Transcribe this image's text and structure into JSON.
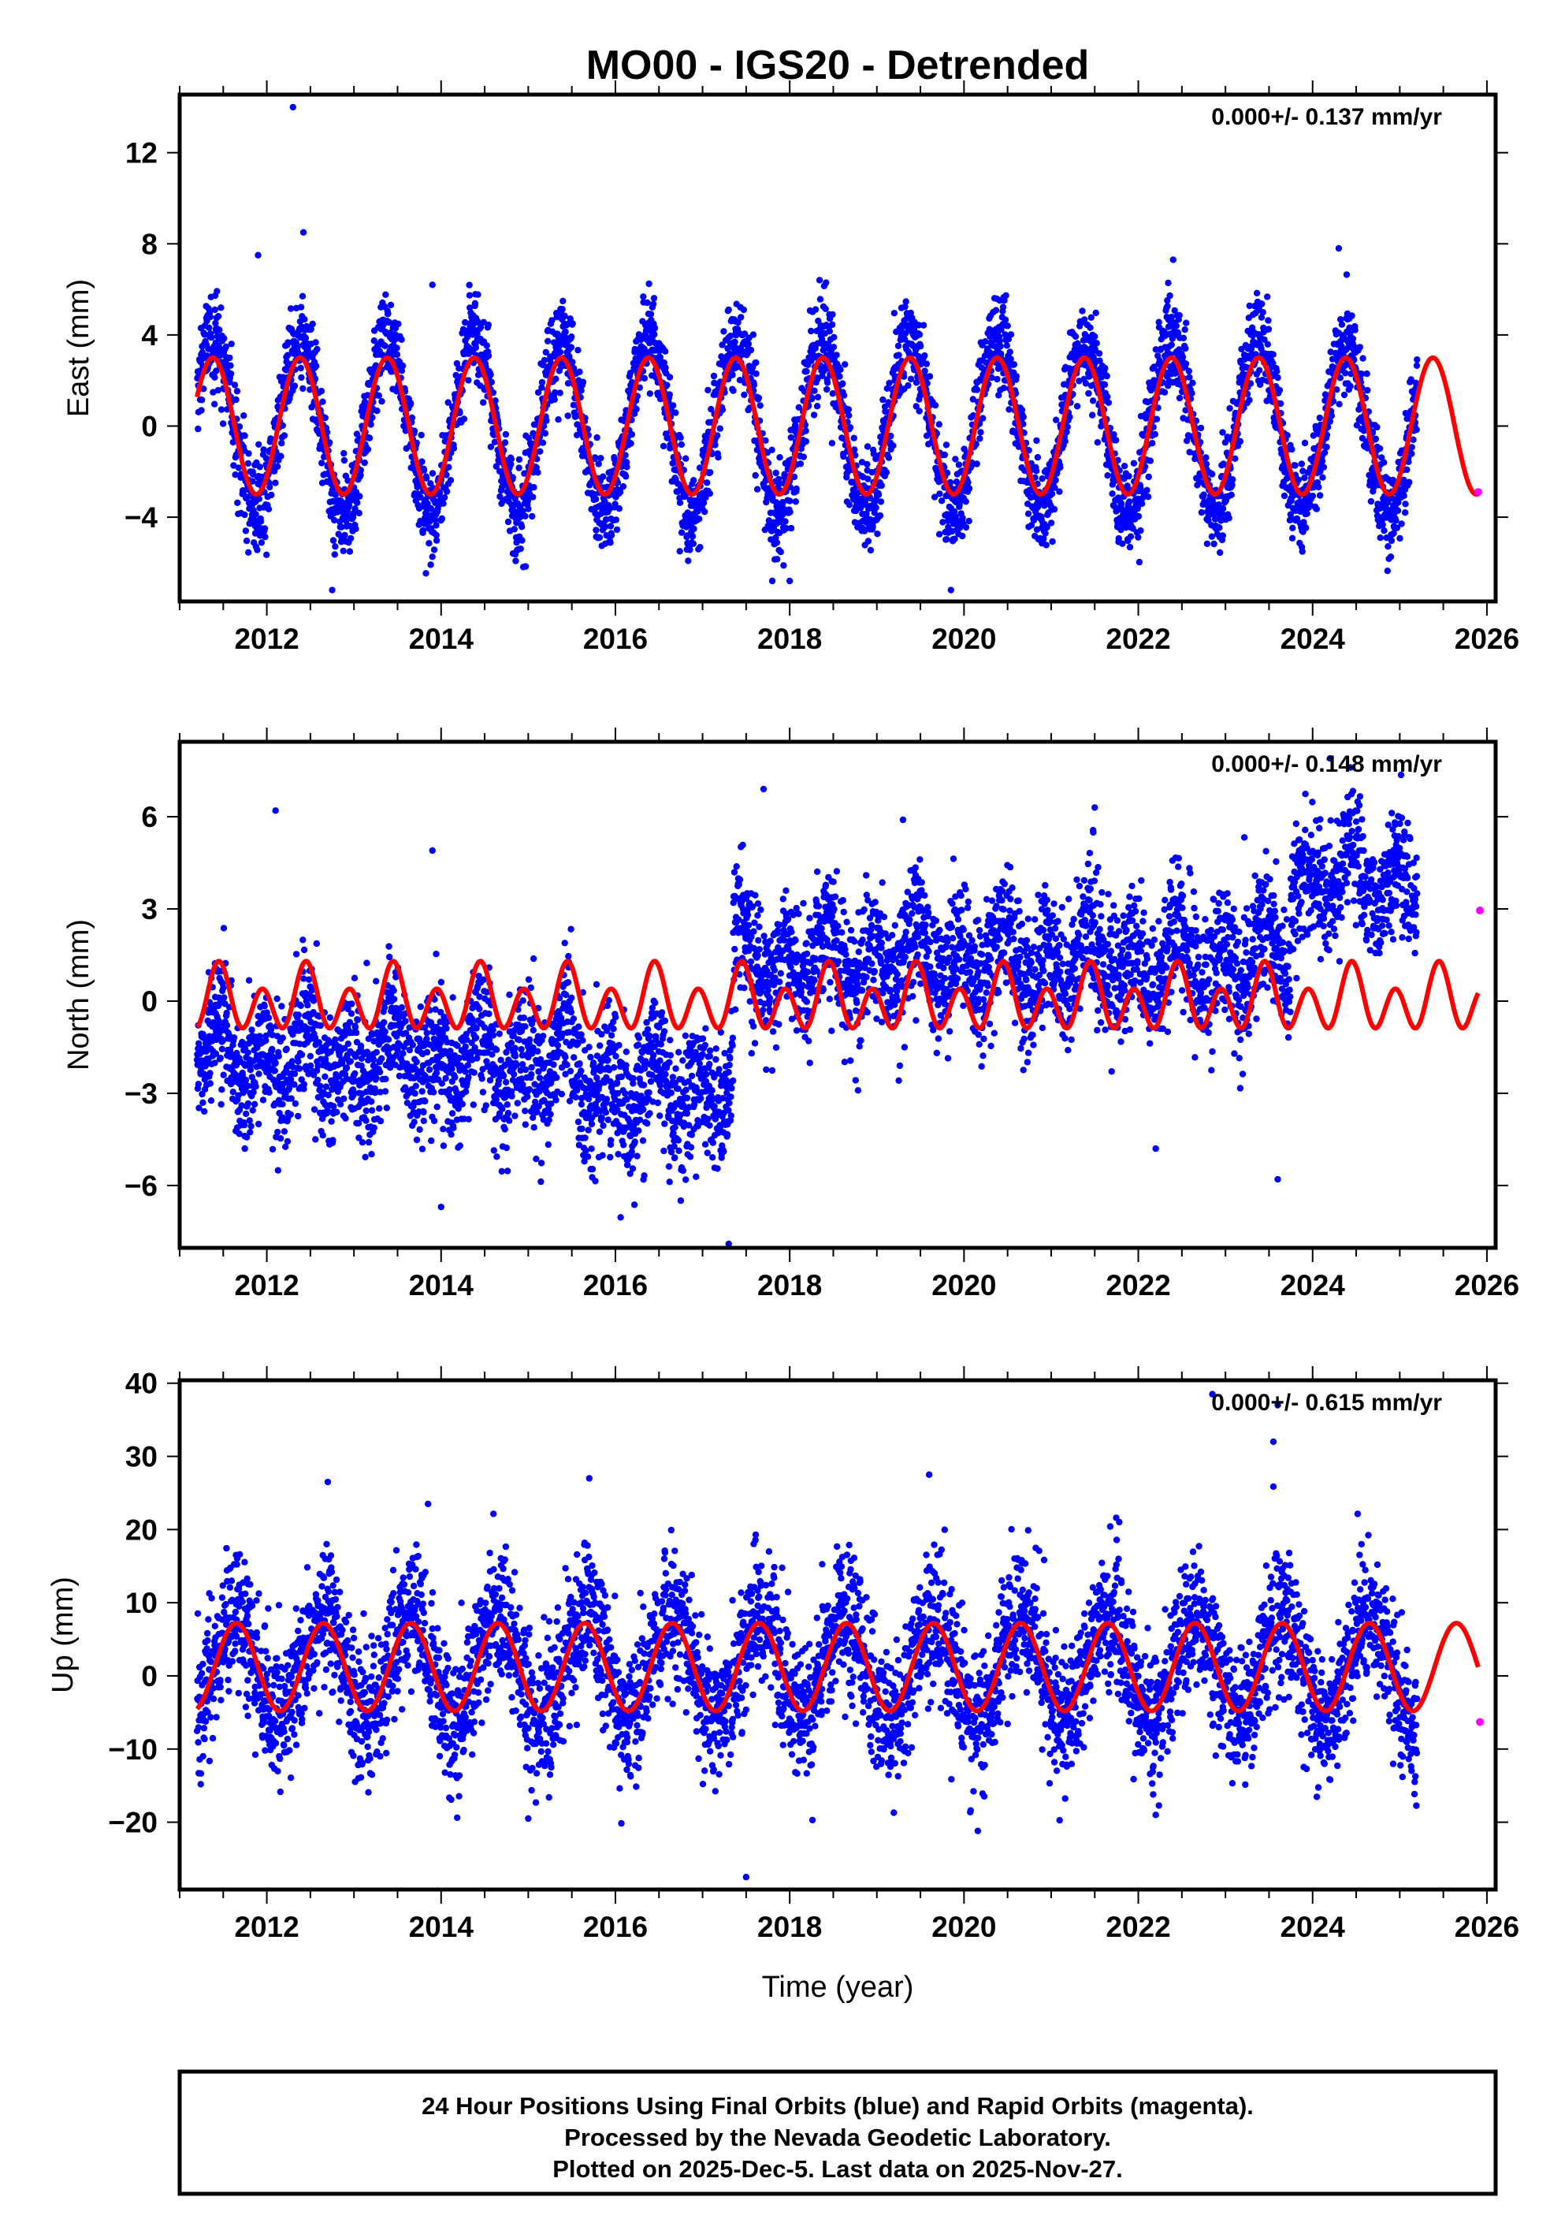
{
  "title": "MO00 - IGS20 - Detrended",
  "xlabel": "Time (year)",
  "footer": {
    "line1": "24 Hour Positions Using Final Orbits (blue) and Rapid Orbits (magenta).",
    "line2": "Processed by the Nevada Geodetic Laboratory.",
    "line3": "Plotted on 2025-Dec-5. Last data on 2025-Nov-27."
  },
  "colors": {
    "final": "#0000ff",
    "rapid": "#ff00ff",
    "model": "#ff0000"
  },
  "chart_data": [
    {
      "type": "scatter",
      "name": "east",
      "ylabel": "East (mm)",
      "rate_label": "0.000+/- 0.137 mm/yr",
      "xlim": [
        2011.0,
        2026.1
      ],
      "xticks": [
        2012,
        2014,
        2016,
        2018,
        2020,
        2022,
        2024,
        2026
      ],
      "xtick_labels": [
        "2012",
        "2014",
        "2016",
        "2018",
        "2020",
        "2022",
        "2024",
        "2026"
      ],
      "ylim": [
        -7.7,
        14.55
      ],
      "yticks": [
        -4,
        0,
        4,
        8,
        12
      ],
      "ytick_labels": [
        "-4",
        "0",
        "4",
        "8",
        "12"
      ],
      "final_range": [
        2011.2,
        2025.2
      ],
      "model": {
        "mean": 0,
        "annual_amp": 3.0,
        "annual_peak": 0.38,
        "semiannual_amp": 0,
        "semiannual_peak": 0,
        "end": 2025.9
      },
      "data_scatter": {
        "scale": 1.25,
        "noise_sd": 1.0,
        "offsets": [
          [
            2011.0,
            2026.0,
            0
          ]
        ]
      },
      "outliers": [
        [
          2012.3,
          14.0
        ],
        [
          2012.42,
          8.5
        ],
        [
          2011.9,
          7.5
        ],
        [
          2012.75,
          -7.2
        ],
        [
          2019.85,
          -7.2
        ],
        [
          2017.8,
          -6.8
        ],
        [
          2018.0,
          -6.8
        ],
        [
          2013.9,
          6.2
        ],
        [
          2022.4,
          7.3
        ],
        [
          2024.3,
          7.8
        ]
      ],
      "rapid": [
        [
          2025.9,
          -2.9
        ]
      ]
    },
    {
      "type": "scatter",
      "name": "north",
      "ylabel": "North (mm)",
      "rate_label": "0.000+/- 0.148 mm/yr",
      "xlim": [
        2011.0,
        2026.1
      ],
      "xticks": [
        2012,
        2014,
        2016,
        2018,
        2020,
        2022,
        2024,
        2026
      ],
      "xtick_labels": [
        "2012",
        "2014",
        "2016",
        "2018",
        "2020",
        "2022",
        "2024",
        "2026"
      ],
      "ylim": [
        -8.03,
        8.44
      ],
      "yticks": [
        -6,
        -3,
        0,
        3,
        6
      ],
      "ytick_labels": [
        "-6",
        "-3",
        "0",
        "3",
        "6"
      ],
      "final_range": [
        2011.2,
        2025.2
      ],
      "model": {
        "mean": 0,
        "annual_amp": 0.45,
        "annual_peak": 0.45,
        "semiannual_amp": 0.85,
        "semiannual_peak": 0.45,
        "end": 2025.9
      },
      "data_scatter": {
        "scale": 1.0,
        "noise_sd": 1.1,
        "offsets": [
          [
            2011.0,
            2015.5,
            -1.9
          ],
          [
            2015.5,
            2017.35,
            -2.9
          ],
          [
            2017.35,
            2023.75,
            1.3
          ],
          [
            2023.75,
            2026.0,
            4.0
          ]
        ]
      },
      "outliers": [
        [
          2012.1,
          6.2
        ],
        [
          2013.9,
          4.9
        ],
        [
          2017.3,
          -7.9
        ],
        [
          2023.6,
          -5.8
        ],
        [
          2014.0,
          -6.7
        ],
        [
          2017.7,
          6.9
        ],
        [
          2021.5,
          6.3
        ],
        [
          2024.2,
          7.9
        ],
        [
          2019.3,
          5.9
        ],
        [
          2022.2,
          -4.8
        ]
      ],
      "rapid": [
        [
          2025.92,
          2.95
        ]
      ]
    },
    {
      "type": "scatter",
      "name": "up",
      "ylabel": "Up (mm)",
      "rate_label": "0.000+/- 0.615 mm/yr",
      "xlim": [
        2011.0,
        2026.1
      ],
      "xticks": [
        2012,
        2014,
        2016,
        2018,
        2020,
        2022,
        2024,
        2026
      ],
      "xtick_labels": [
        "2012",
        "2014",
        "2016",
        "2018",
        "2020",
        "2022",
        "2024",
        "2026"
      ],
      "ylim": [
        -29.2,
        40.4
      ],
      "yticks": [
        -20,
        -10,
        0,
        10,
        20,
        30,
        40
      ],
      "ytick_labels": [
        "-20",
        "-10",
        "0",
        "10",
        "20",
        "30",
        "40"
      ],
      "final_range": [
        2011.2,
        2025.2
      ],
      "model": {
        "mean": 1.2,
        "annual_amp": 6.0,
        "annual_peak": 0.65,
        "semiannual_amp": 0,
        "semiannual_peak": 0,
        "end": 2025.9
      },
      "data_scatter": {
        "scale": 1.2,
        "noise_sd": 4.6,
        "offsets": [
          [
            2011.0,
            2026.0,
            0
          ]
        ]
      },
      "outliers": [
        [
          2017.5,
          -27.5
        ],
        [
          2022.85,
          38.5
        ],
        [
          2023.55,
          32.0
        ],
        [
          2015.7,
          27.0
        ],
        [
          2019.6,
          27.5
        ],
        [
          2012.7,
          26.5
        ],
        [
          2023.6,
          37.0
        ],
        [
          2013.85,
          23.5
        ],
        [
          2015.0,
          -19.5
        ],
        [
          2022.2,
          -19.0
        ]
      ],
      "rapid": [
        [
          2025.92,
          -6.3
        ]
      ]
    }
  ]
}
